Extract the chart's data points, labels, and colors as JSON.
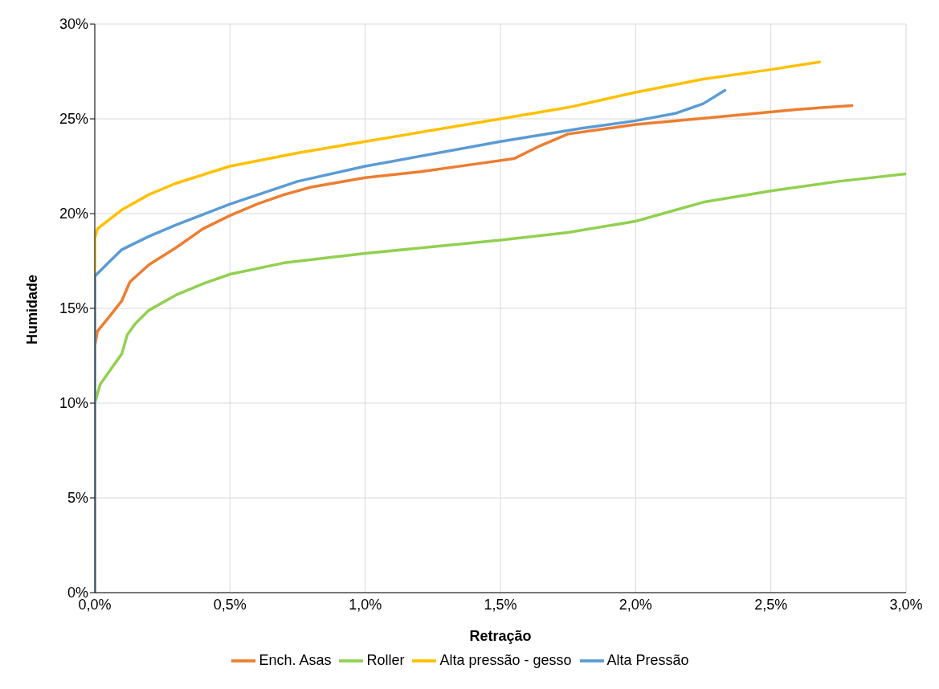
{
  "chart_data": {
    "type": "line",
    "xlabel": "Retração",
    "ylabel": "Humidade",
    "xlim": [
      0,
      3
    ],
    "xticks": [
      {
        "value": 0,
        "label": "0,0%"
      },
      {
        "value": 0.5,
        "label": "0,5%"
      },
      {
        "value": 1,
        "label": "1,0%"
      },
      {
        "value": 1.5,
        "label": "1,5%"
      },
      {
        "value": 2,
        "label": "2,0%"
      },
      {
        "value": 2.5,
        "label": "2,5%"
      },
      {
        "value": 3,
        "label": "3,0%"
      }
    ],
    "ylim": [
      0,
      30
    ],
    "yticks": [
      {
        "value": 0,
        "label": "0%"
      },
      {
        "value": 5,
        "label": "5%"
      },
      {
        "value": 10,
        "label": "10%"
      },
      {
        "value": 15,
        "label": "15%"
      },
      {
        "value": 20,
        "label": "20%"
      },
      {
        "value": 25,
        "label": "25%"
      },
      {
        "value": 30,
        "label": "30%"
      }
    ],
    "grid": true,
    "legend": "bottom",
    "marker": "none",
    "line_style": "solid",
    "series": [
      {
        "name": "Ench. Asas",
        "color": "#ed7d31",
        "x": [
          0,
          0,
          0.01,
          0.05,
          0.1,
          0.13,
          0.2,
          0.3,
          0.4,
          0.5,
          0.6,
          0.7,
          0.8,
          1.0,
          1.2,
          1.4,
          1.55,
          1.65,
          1.75,
          1.9,
          2.0,
          2.3,
          2.6,
          2.8
        ],
        "values": [
          0,
          13,
          13.8,
          14.5,
          15.4,
          16.4,
          17.3,
          18.2,
          19.2,
          19.9,
          20.5,
          21.0,
          21.4,
          21.9,
          22.2,
          22.6,
          22.9,
          23.6,
          24.2,
          24.5,
          24.7,
          25.1,
          25.5,
          25.7
        ]
      },
      {
        "name": "Roller",
        "color": "#92d050",
        "x": [
          0,
          0,
          0.02,
          0.06,
          0.1,
          0.12,
          0.15,
          0.2,
          0.3,
          0.4,
          0.5,
          0.7,
          1.0,
          1.5,
          1.75,
          2.0,
          2.25,
          2.5,
          2.75,
          3.0
        ],
        "values": [
          0,
          10,
          11,
          11.8,
          12.6,
          13.6,
          14.2,
          14.9,
          15.7,
          16.3,
          16.8,
          17.4,
          17.9,
          18.6,
          19.0,
          19.6,
          20.6,
          21.2,
          21.7,
          22.1
        ]
      },
      {
        "name": "Alta pressão - gesso",
        "color": "#ffc000",
        "x": [
          0,
          0,
          0.01,
          0.1,
          0.2,
          0.3,
          0.5,
          0.75,
          1.0,
          1.5,
          1.75,
          2.0,
          2.25,
          2.5,
          2.68
        ],
        "values": [
          0,
          18.7,
          19.2,
          20.2,
          21.0,
          21.6,
          22.5,
          23.2,
          23.8,
          25.0,
          25.6,
          26.4,
          27.1,
          27.6,
          28.0
        ]
      },
      {
        "name": "Alta Pressão",
        "color": "#5b9bd5",
        "x": [
          0,
          0,
          0.05,
          0.1,
          0.2,
          0.3,
          0.5,
          0.75,
          1.0,
          1.5,
          1.8,
          2.0,
          2.15,
          2.25,
          2.33
        ],
        "values": [
          0,
          16.7,
          17.4,
          18.1,
          18.8,
          19.4,
          20.5,
          21.7,
          22.5,
          23.8,
          24.5,
          24.9,
          25.3,
          25.8,
          26.5
        ]
      }
    ]
  }
}
